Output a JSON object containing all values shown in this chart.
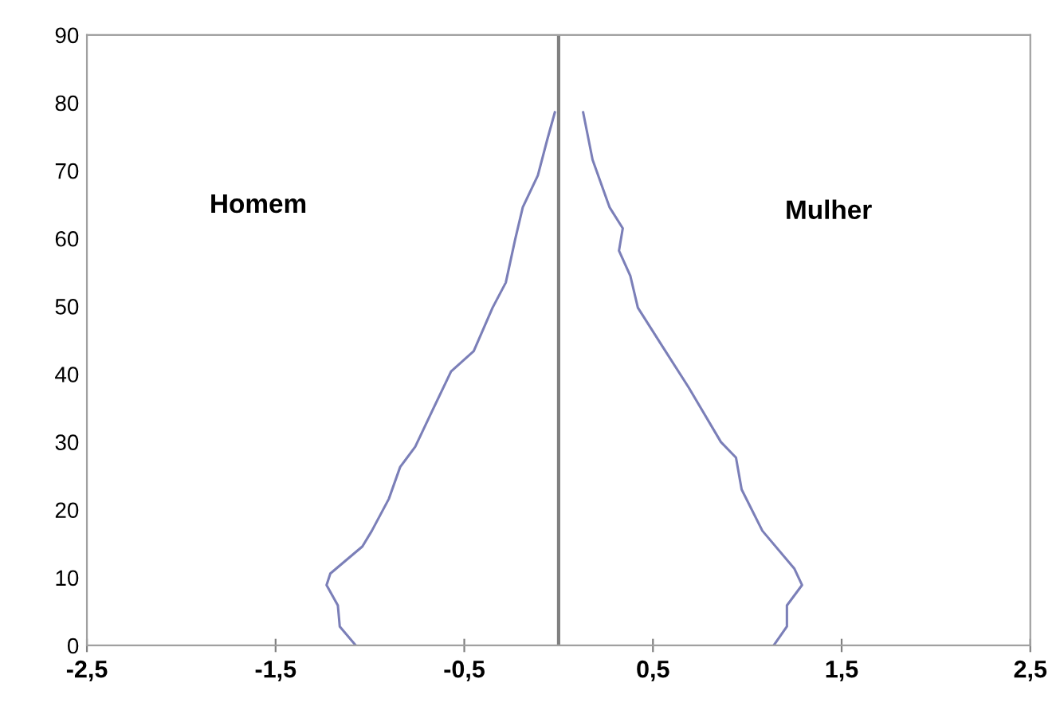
{
  "chart_data": {
    "type": "line",
    "series": [
      {
        "color": "#7b7fb8",
        "x": [
          -1.075,
          -1.16,
          -1.17,
          -1.23,
          -1.21,
          -1.04,
          -0.99,
          -0.9,
          -0.84,
          -0.76,
          -0.68,
          -0.57,
          -0.45,
          -0.35,
          -0.28,
          -0.23,
          -0.19,
          -0.11,
          -0.06,
          -0.02
        ],
        "values": [
          0,
          2.8,
          5.9,
          8.9,
          10.6,
          14.6,
          16.9,
          21.6,
          26.3,
          29.3,
          34,
          40.4,
          43.4,
          49.8,
          53.5,
          59.9,
          64.6,
          69.3,
          74.6,
          78.6
        ]
      },
      {
        "color": "#7b7fb8",
        "x": [
          1.14,
          1.21,
          1.21,
          1.29,
          1.25,
          1.08,
          0.97,
          0.94,
          0.86,
          0.69,
          0.55,
          0.42,
          0.38,
          0.32,
          0.34,
          0.27,
          0.18,
          0.13
        ],
        "values": [
          0,
          2.8,
          5.9,
          8.9,
          11.3,
          16.9,
          23,
          27.7,
          30,
          38,
          44.1,
          49.8,
          54.5,
          58.2,
          61.5,
          64.6,
          71.6,
          78.6
        ]
      }
    ],
    "annotations": [
      "Homem",
      "Mulher"
    ],
    "ref_lines": [
      {
        "axis": "x",
        "value": 0,
        "color": "#808080"
      }
    ],
    "xlim": [
      -2.5,
      2.5
    ],
    "xticks": [
      {
        "value": -2.5,
        "label": "-2,5"
      },
      {
        "value": -1.5,
        "label": "-1,5"
      },
      {
        "value": -0.5,
        "label": "-0,5"
      },
      {
        "value": 0.5,
        "label": "0,5"
      },
      {
        "value": 1.5,
        "label": "1,5"
      },
      {
        "value": 2.5,
        "label": "2,5"
      }
    ],
    "ylim": [
      0,
      90
    ],
    "yticks": [
      0,
      10,
      20,
      30,
      40,
      50,
      60,
      70,
      80,
      90
    ],
    "grid": false,
    "marker": "none",
    "line_style": "solid"
  }
}
